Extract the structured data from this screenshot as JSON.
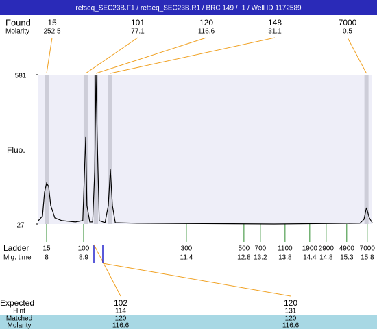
{
  "chart_data": {
    "type": "line",
    "title": "refseq_SEC23B.F1 / refseq_SEC23B.R1 / BRC 149 / -1 / Well ID 1172589",
    "found_label": "Found",
    "molarity_label": "Molarity",
    "y_label": "Fluo.",
    "xlim": [
      7.8,
      15.92
    ],
    "ylim": [
      27,
      581
    ],
    "yticks": [
      27,
      581
    ],
    "plot_color": "#eeeef8",
    "header_color": "#2a2ab8",
    "found": {
      "x": [
        8.0,
        8.95,
        9.2,
        9.55,
        15.78
      ],
      "sizes": [
        15,
        101,
        120,
        148,
        7000
      ],
      "molarity": [
        252.5,
        77.1,
        116.6,
        31.1,
        0.5
      ],
      "color": "#f0a020",
      "band_color": "#cdcdd8"
    },
    "series": [
      {
        "color": "#000000",
        "x": [
          7.8,
          7.9,
          7.95,
          8.0,
          8.05,
          8.1,
          8.2,
          8.37,
          8.7,
          8.88,
          8.95,
          8.98,
          9.05,
          9.12,
          9.17,
          9.2,
          9.23,
          9.28,
          9.42,
          9.5,
          9.55,
          9.6,
          9.67,
          10.2,
          13.53,
          15.62,
          15.72,
          15.78,
          15.85,
          15.92
        ],
        "values": [
          40,
          57,
          146,
          179,
          166,
          96,
          50,
          40,
          35,
          40,
          350,
          96,
          35,
          35,
          226,
          581,
          350,
          40,
          32,
          96,
          230,
          96,
          32,
          30,
          27,
          30,
          45,
          88,
          50,
          32
        ]
      }
    ],
    "ladder": {
      "label": "Ladder",
      "time_label": "Mig. time",
      "sizes": [
        15,
        100,
        300,
        500,
        700,
        1100,
        1900,
        2900,
        4900,
        7000
      ],
      "times": [
        8,
        8.9,
        11.4,
        12.8,
        13.2,
        13.8,
        14.4,
        14.8,
        15.3,
        15.8
      ],
      "color": "#2e8b2e"
    },
    "expected": {
      "label": "Expected",
      "hint_label": "Hint",
      "matched_label": "Matched",
      "molarity_label": "Molarity",
      "sizes": [
        102,
        120
      ],
      "hint": [
        114,
        131
      ],
      "matched": [
        120,
        120
      ],
      "molarity": [
        116.6,
        116.6
      ],
      "row_color": "#a8d8e4",
      "marker_color": "#2222cc"
    }
  }
}
